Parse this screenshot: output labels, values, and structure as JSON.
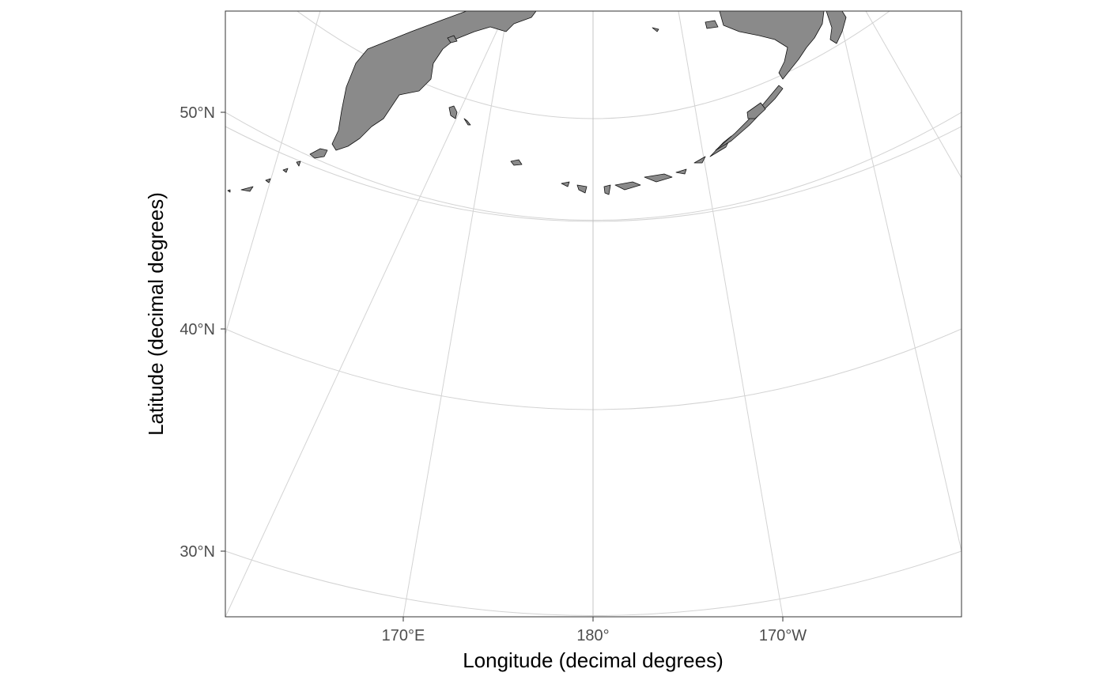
{
  "map": {
    "projection": "conic (polar-centered)",
    "background": "#ffffff",
    "land_color": "#8a8a8a",
    "coast_color": "#111111",
    "graticule_color": "#d3d3d3",
    "panel_border": "#333333",
    "xlim": [
      "about 160.5°E",
      "about 158°W"
    ],
    "ylim": [
      "about 27°N",
      "about 55°N"
    ],
    "x_axis": {
      "title": "Longitude (decimal degrees)",
      "ticks": [
        {
          "value": 170,
          "label": "170°E"
        },
        {
          "value": 180,
          "label": "180°"
        },
        {
          "value": -170,
          "label": "170°W"
        }
      ]
    },
    "y_axis": {
      "title": "Latitude (decimal degrees)",
      "ticks": [
        {
          "value": 50,
          "label": "50°N"
        },
        {
          "value": 40,
          "label": "40°N"
        },
        {
          "value": 30,
          "label": "30°N"
        }
      ]
    },
    "meridians": [
      160,
      165,
      170,
      175,
      180,
      -175,
      -170,
      -165,
      -160
    ],
    "parallels": [
      30,
      35,
      40,
      45,
      50,
      55
    ],
    "land_features": [
      "kamchatka-peninsula",
      "kommandorski-islands",
      "kuril-islands",
      "aleutian-islands",
      "alaska-peninsula",
      "kodiak-island"
    ]
  }
}
